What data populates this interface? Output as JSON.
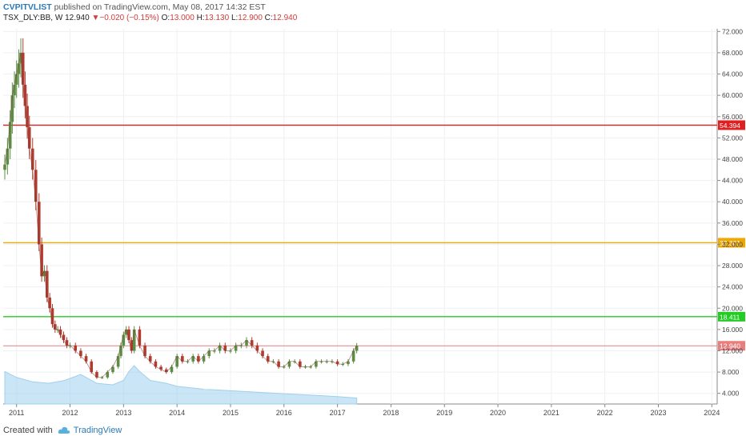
{
  "header": {
    "username": "CVPITVLIST",
    "published_text": " published on TradingView.com, May 08, 2017 14:32 EST",
    "symbol": "TSX_DLY:BB, W",
    "last": "12.940",
    "change": "−0.020 (−0.15%)",
    "open_label": "O:",
    "open": "13.000",
    "high_label": "H:",
    "high": "13.130",
    "low_label": "L:",
    "low": "12.900",
    "close_label": "C:",
    "close": "12.940"
  },
  "footer": {
    "created_with": "Created with",
    "brand": "TradingView"
  },
  "colors": {
    "up": "#5d8d44",
    "down": "#b03b2e",
    "volume": "#9fd0ec",
    "line_red": "#e02020",
    "line_orange": "#f0a800",
    "line_green": "#22cc22",
    "price_line": "#e87f7f"
  },
  "chart_data": {
    "type": "line",
    "subtype": "candlestick-weekly-with-volume",
    "x_axis": {
      "ticks": [
        "2011",
        "2012",
        "2013",
        "2014",
        "2015",
        "2016",
        "2017",
        "2018",
        "2019",
        "2020",
        "2021",
        "2022",
        "2023",
        "2024"
      ],
      "range": [
        2010.75,
        2024.1
      ]
    },
    "y_axis": {
      "ticks": [
        "4.000",
        "8.000",
        "12.000",
        "16.000",
        "20.000",
        "24.000",
        "28.000",
        "32.000",
        "36.000",
        "40.000",
        "44.000",
        "48.000",
        "52.000",
        "56.000",
        "60.000",
        "64.000",
        "68.000",
        "72.000"
      ],
      "range": [
        2.0,
        72.5
      ],
      "position": "right"
    },
    "horizontal_lines": [
      {
        "price": 54.394,
        "label": "54.394",
        "color": "red"
      },
      {
        "price": 32.301,
        "label": "32.301",
        "color": "orange"
      },
      {
        "price": 18.411,
        "label": "18.411",
        "color": "green"
      },
      {
        "price": 12.94,
        "label": "12.940",
        "color": "price"
      }
    ],
    "series": [
      {
        "kind": "close",
        "x": [
          2010.78,
          2010.83,
          2010.88,
          2010.92,
          2010.96,
          2011.0,
          2011.04,
          2011.08,
          2011.12,
          2011.16,
          2011.2,
          2011.24,
          2011.3,
          2011.36,
          2011.42,
          2011.47,
          2011.52,
          2011.57,
          2011.62,
          2011.67,
          2011.72,
          2011.77,
          2011.82,
          2011.88,
          2011.94,
          2012.0,
          2012.1,
          2012.2,
          2012.3,
          2012.4,
          2012.5,
          2012.6,
          2012.7,
          2012.8,
          2012.9,
          2012.95,
          2013.0,
          2013.05,
          2013.1,
          2013.15,
          2013.2,
          2013.3,
          2013.4,
          2013.5,
          2013.6,
          2013.7,
          2013.8,
          2013.9,
          2014.0,
          2014.1,
          2014.2,
          2014.3,
          2014.4,
          2014.5,
          2014.6,
          2014.7,
          2014.8,
          2014.9,
          2015.0,
          2015.1,
          2015.2,
          2015.3,
          2015.4,
          2015.5,
          2015.6,
          2015.7,
          2015.8,
          2015.9,
          2016.0,
          2016.1,
          2016.2,
          2016.3,
          2016.4,
          2016.5,
          2016.6,
          2016.7,
          2016.8,
          2016.9,
          2017.0,
          2017.1,
          2017.2,
          2017.3,
          2017.36
        ],
        "values": [
          47,
          50,
          55,
          60,
          62,
          64,
          66,
          68,
          62,
          58,
          54,
          50,
          46,
          40,
          32,
          26,
          27,
          22,
          20,
          17,
          16,
          16,
          15,
          14,
          13,
          13,
          12,
          11,
          10,
          8,
          7,
          7,
          8,
          9,
          11,
          13,
          15,
          16,
          14,
          12,
          16,
          13,
          11,
          10,
          9,
          8.5,
          8,
          9,
          11,
          10,
          10,
          11,
          10,
          11,
          12,
          12,
          13,
          12,
          12,
          13,
          13,
          14,
          13,
          12,
          11,
          10,
          10,
          9,
          9,
          10,
          10,
          9,
          9,
          9,
          10,
          10,
          10,
          10,
          9.5,
          9.5,
          10,
          12,
          12.94
        ]
      },
      {
        "kind": "volume",
        "x": [
          2010.78,
          2011.0,
          2011.3,
          2011.6,
          2011.9,
          2012.2,
          2012.5,
          2012.8,
          2013.0,
          2013.1,
          2013.2,
          2013.3,
          2013.5,
          2013.8,
          2014.0,
          2014.5,
          2015.0,
          2015.5,
          2016.0,
          2016.5,
          2017.0,
          2017.36
        ],
        "values": [
          22,
          18,
          15,
          14,
          16,
          20,
          14,
          13,
          16,
          22,
          26,
          22,
          16,
          14,
          12,
          10,
          9,
          8,
          7,
          6,
          5,
          4
        ]
      }
    ]
  }
}
